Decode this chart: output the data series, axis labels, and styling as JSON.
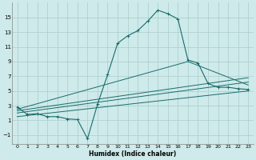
{
  "xlabel": "Humidex (Indice chaleur)",
  "bg_color": "#ceeaea",
  "grid_color": "#b0d0d0",
  "line_color": "#1a6b6b",
  "xlim": [
    -0.5,
    23.5
  ],
  "ylim": [
    -2.2,
    17.0
  ],
  "yticks": [
    -1,
    1,
    3,
    5,
    7,
    9,
    11,
    13,
    15
  ],
  "xticks": [
    0,
    1,
    2,
    3,
    4,
    5,
    6,
    7,
    8,
    9,
    10,
    11,
    12,
    13,
    14,
    15,
    16,
    17,
    18,
    19,
    20,
    21,
    22,
    23
  ],
  "main_x": [
    0,
    1,
    2,
    3,
    4,
    5,
    6,
    7,
    8,
    9,
    10,
    11,
    12,
    13,
    14,
    15,
    16,
    17,
    18,
    19,
    20,
    21,
    22,
    23
  ],
  "main_y": [
    2.8,
    1.8,
    1.9,
    1.5,
    1.5,
    1.2,
    1.1,
    -1.5,
    3.2,
    7.2,
    11.5,
    12.5,
    13.2,
    14.5,
    16.0,
    15.5,
    14.8,
    9.2,
    8.8,
    6.0,
    5.5,
    5.5,
    5.3,
    5.2
  ],
  "line2_x": [
    0,
    17,
    23
  ],
  "line2_y": [
    2.5,
    9.0,
    5.8
  ],
  "line3_x": [
    0,
    23
  ],
  "line3_y": [
    2.3,
    6.8
  ],
  "line4_x": [
    0,
    23
  ],
  "line4_y": [
    2.0,
    6.2
  ],
  "line5_x": [
    0,
    23
  ],
  "line5_y": [
    1.5,
    5.0
  ]
}
